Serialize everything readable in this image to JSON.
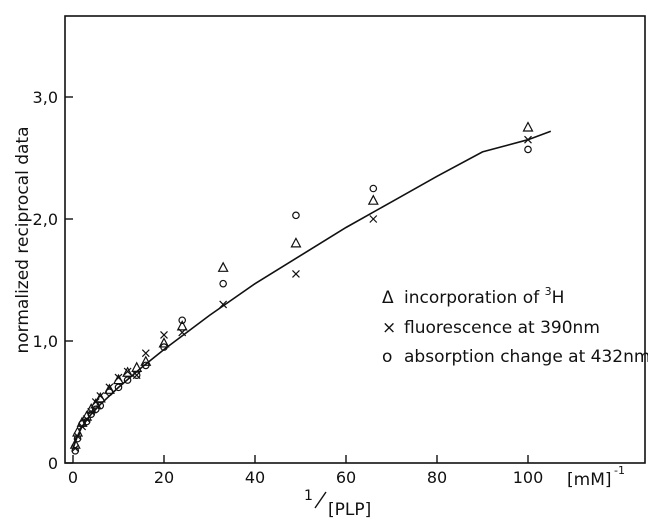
{
  "chart_data": {
    "type": "scatter",
    "xlabel": "1/[PLP]",
    "x_unit": "[mM]^-1",
    "ylabel": "normalized reciprocal data",
    "xlim": [
      0,
      110
    ],
    "ylim": [
      0,
      3.5
    ],
    "x_ticks": [
      0,
      20,
      40,
      60,
      80,
      100
    ],
    "x_tick_labels": [
      "0",
      "20",
      "40",
      "60",
      "80",
      "100"
    ],
    "y_ticks": [
      0,
      1.0,
      2.0,
      3.0
    ],
    "y_tick_labels": [
      "0",
      "1,0",
      "2,0",
      "3,0"
    ],
    "grid": false,
    "legend_position": "right",
    "series": [
      {
        "name": "incorporation of 3H",
        "marker": "triangle",
        "x": [
          0.5,
          1,
          2,
          3,
          4,
          5,
          6,
          8,
          10,
          12,
          14,
          16,
          20,
          24,
          33,
          49,
          66,
          100
        ],
        "y": [
          0.15,
          0.25,
          0.33,
          0.38,
          0.44,
          0.48,
          0.53,
          0.6,
          0.68,
          0.74,
          0.78,
          0.83,
          0.98,
          1.12,
          1.6,
          1.8,
          2.15,
          2.75
        ]
      },
      {
        "name": "fluorescence at 390nm",
        "marker": "x",
        "x": [
          0.5,
          1,
          2,
          3,
          4,
          5,
          6,
          8,
          10,
          12,
          14,
          16,
          20,
          24,
          33,
          49,
          66,
          100
        ],
        "y": [
          0.12,
          0.22,
          0.3,
          0.36,
          0.42,
          0.5,
          0.55,
          0.62,
          0.7,
          0.75,
          0.72,
          0.9,
          1.05,
          1.07,
          1.3,
          1.55,
          2.0,
          2.65
        ]
      },
      {
        "name": "absorption change at 432nm",
        "marker": "circle",
        "x": [
          0.5,
          1,
          2,
          3,
          4,
          5,
          6,
          8,
          10,
          12,
          14,
          16,
          20,
          24,
          33,
          49,
          66,
          100
        ],
        "y": [
          0.1,
          0.2,
          0.32,
          0.34,
          0.4,
          0.44,
          0.47,
          0.58,
          0.62,
          0.68,
          0.72,
          0.8,
          0.95,
          1.17,
          1.47,
          2.03,
          2.25,
          2.57
        ]
      }
    ],
    "fit_curve": {
      "x": [
        0,
        1,
        2,
        4,
        6,
        10,
        15,
        20,
        30,
        40,
        50,
        60,
        70,
        80,
        90,
        100,
        105
      ],
      "y": [
        0.12,
        0.22,
        0.3,
        0.4,
        0.48,
        0.62,
        0.78,
        0.93,
        1.21,
        1.47,
        1.7,
        1.93,
        2.14,
        2.35,
        2.55,
        2.65,
        2.72
      ]
    }
  },
  "legend": {
    "entries": [
      {
        "symbol": "Δ",
        "label": "incorporation of ",
        "superscript": "3",
        "suffix": "H"
      },
      {
        "symbol": "×",
        "label": "fluorescence at 390nm",
        "superscript": "",
        "suffix": ""
      },
      {
        "symbol": "o",
        "label": "absorption change at 432nm",
        "superscript": "",
        "suffix": ""
      }
    ]
  },
  "labels": {
    "y_axis": "normalized reciprocal data",
    "x_unit_text": "[mM]",
    "x_unit_exp": "-1",
    "x_axis_num": "1",
    "x_axis_den": "[PLP]"
  },
  "colors": {
    "ink": "#111111",
    "background": "#ffffff"
  }
}
